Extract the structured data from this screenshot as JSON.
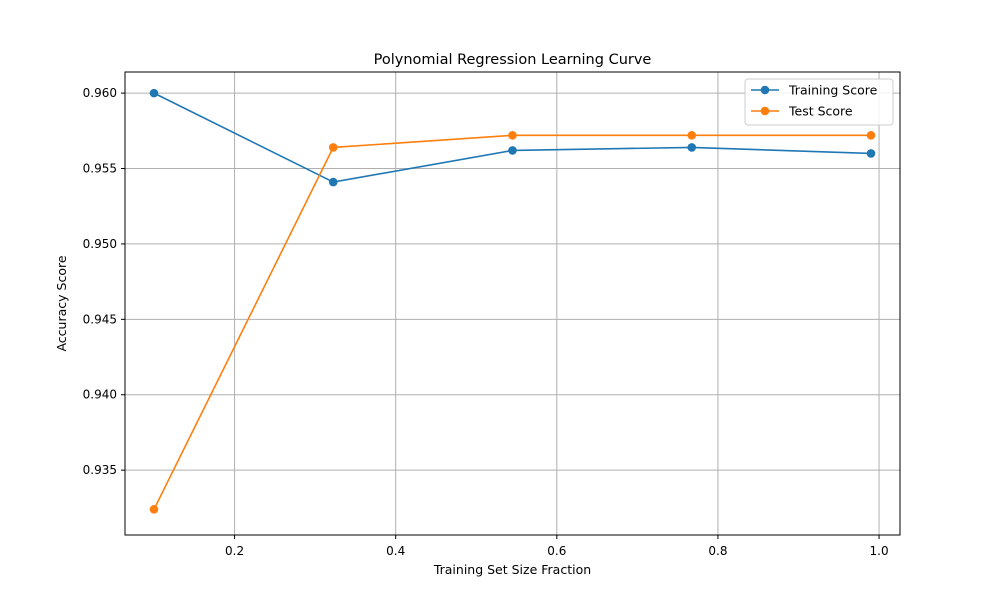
{
  "chart_data": {
    "type": "line",
    "title": "Polynomial Regression Learning Curve",
    "xlabel": "Training Set Size Fraction",
    "ylabel": "Accuracy Score",
    "xlim": [
      0.064,
      1.026
    ],
    "ylim": [
      0.9307,
      0.9614
    ],
    "xticks": [
      0.2,
      0.4,
      0.6,
      0.8,
      1.0
    ],
    "xtick_labels": [
      "0.2",
      "0.4",
      "0.6",
      "0.8",
      "1.0"
    ],
    "yticks": [
      0.935,
      0.94,
      0.945,
      0.95,
      0.955,
      0.96
    ],
    "ytick_labels": [
      "0.935",
      "0.940",
      "0.945",
      "0.950",
      "0.955",
      "0.960"
    ],
    "grid": true,
    "legend_position": "top-right",
    "x": [
      0.1,
      0.3225,
      0.545,
      0.7675,
      0.99
    ],
    "series": [
      {
        "name": "Training Score",
        "color": "#1f77b4",
        "marker": "circle",
        "values": [
          0.96,
          0.9541,
          0.9562,
          0.9564,
          0.956
        ]
      },
      {
        "name": "Test Score",
        "color": "#ff7f0e",
        "marker": "circle",
        "values": [
          0.9324,
          0.9564,
          0.9572,
          0.9572,
          0.9572
        ]
      }
    ]
  }
}
